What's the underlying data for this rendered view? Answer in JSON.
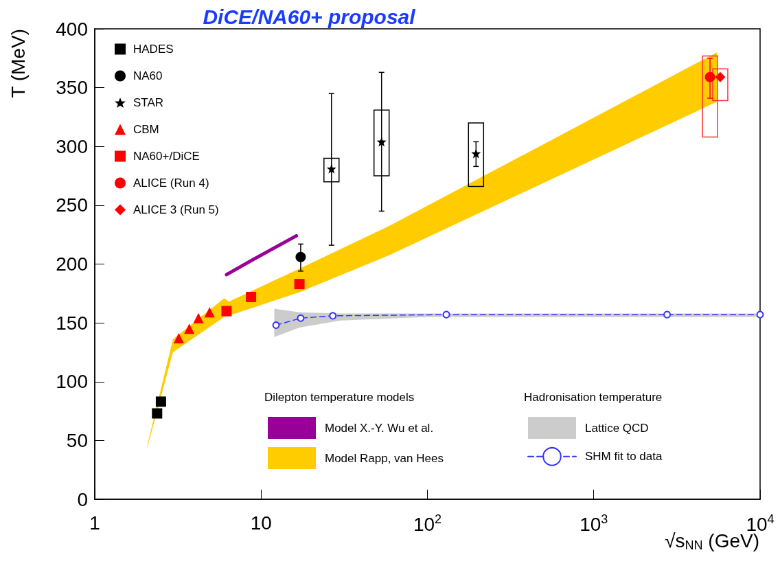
{
  "chart_data": {
    "type": "scatter",
    "title": "DiCE/NA60+ proposal",
    "xlabel": "√s$_{NN}$ (GeV)",
    "ylabel": "T (MeV)",
    "xlim": [
      1,
      10000
    ],
    "xticks": [
      1,
      10,
      {
        "value": 100,
        "label": "10$^{2}$"
      },
      {
        "value": 1000,
        "label": "10$^{3}$"
      },
      {
        "value": 10000,
        "label": "10$^{4}$"
      }
    ],
    "ylim": [
      0,
      400
    ],
    "yticks": [
      0,
      50,
      100,
      150,
      200,
      250,
      300,
      350,
      400
    ],
    "log": "x",
    "legend": "top left",
    "annotations": [
      "Dilepton temperature models",
      "Hadronisation temperature"
    ],
    "series": [
      {
        "type": "line",
        "name": "Model X.-Y. Wu et al.",
        "color": "#990099",
        "marker": "none",
        "line_style": "solid",
        "x": [
          6.2,
          9,
          16.3
        ],
        "values": [
          191,
          204,
          224
        ]
      },
      {
        "type": "area",
        "name": "Model Rapp, van Hees",
        "color": "#ffcc00",
        "x": [
          2.07,
          2.95,
          6.0,
          6.4,
          17,
          60,
          5500
        ],
        "values": [
          null,
          null,
          null,
          null,
          null,
          null,
          null
        ],
        "lower": [
          44,
          125,
          155,
          156,
          176,
          208,
          338
        ],
        "upper": [
          46,
          136,
          171,
          168,
          196,
          233,
          380
        ]
      },
      {
        "type": "area",
        "name": "Lattice QCD",
        "color": "#cccccc",
        "x": [
          12,
          17,
          30,
          100,
          10000
        ],
        "values": [
          null,
          null,
          null,
          null,
          null
        ],
        "lower": [
          138,
          146,
          152,
          155,
          155
        ],
        "upper": [
          162,
          159,
          158,
          158,
          158
        ]
      },
      {
        "type": "line",
        "name": "SHM fit to data",
        "color": "#3333ff",
        "marker": "circle",
        "line_style": "dashed",
        "x": [
          12.3,
          17.3,
          27,
          130,
          2760,
          10000
        ],
        "values": [
          148,
          154,
          156,
          157,
          157,
          157
        ]
      },
      {
        "type": "bar",
        "color": "#000000",
        "x": [
          26.5,
          53,
          196
        ],
        "base": [
          270,
          275,
          266
        ],
        "values": [
          20,
          56,
          54
        ]
      },
      {
        "type": "bar",
        "color": "#ff3333",
        "x": [
          5000,
          5760
        ],
        "base": [
          308,
          339
        ],
        "values": [
          69,
          27
        ]
      },
      {
        "type": "scatter",
        "name": "HADES",
        "color": "#000000",
        "marker": "square",
        "x": [
          2.37,
          2.5
        ],
        "values": [
          73,
          83
        ]
      },
      {
        "type": "scatter",
        "name": "NA60",
        "color": "#000000",
        "marker": "circle",
        "x": [
          17.3
        ],
        "values": [
          206
        ],
        "errors": [
          [
            194,
            217
          ]
        ]
      },
      {
        "type": "scatter",
        "name": "STAR",
        "color": "#000000",
        "marker": "star",
        "x": [
          26.5,
          53,
          196
        ],
        "values": [
          281,
          304,
          294
        ],
        "errors": [
          [
            216,
            345
          ],
          [
            245,
            363
          ],
          [
            283,
            304
          ]
        ]
      },
      {
        "type": "scatter",
        "name": "CBM",
        "color": "#ff0000",
        "marker": "triangle",
        "x": [
          3.2,
          3.7,
          4.2,
          4.9
        ],
        "values": [
          137,
          145,
          154,
          159
        ]
      },
      {
        "type": "scatter",
        "name": "NA60+/DiCE",
        "color": "#ff0000",
        "marker": "square",
        "x": [
          6.2,
          8.7,
          17
        ],
        "values": [
          160,
          172,
          183
        ]
      },
      {
        "type": "scatter",
        "name": "ALICE (Run 4)",
        "color": "#ff0000",
        "marker": "circle",
        "x": [
          5000
        ],
        "values": [
          359
        ],
        "errors": [
          [
            341,
            375
          ]
        ]
      },
      {
        "type": "scatter",
        "name": "ALICE 3 (Run 5)",
        "color": "#ff0000",
        "marker": "diamond",
        "x": [
          5760
        ],
        "values": [
          359
        ]
      }
    ]
  }
}
